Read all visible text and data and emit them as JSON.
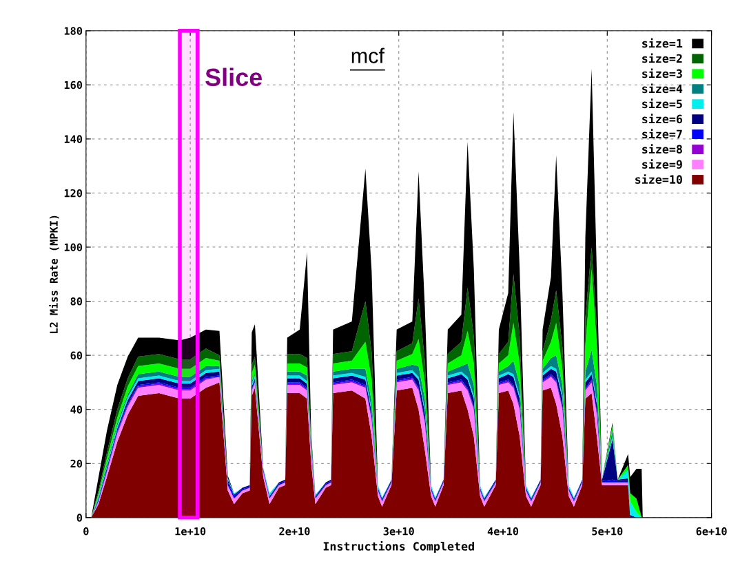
{
  "chart_data": {
    "type": "area",
    "stacked": true,
    "title": "mcf",
    "xlabel": "Instructions Completed",
    "ylabel": "L2 Miss Rate (MPKI)",
    "x": [
      500000000.0,
      1200000000.0,
      2000000000.0,
      3000000000.0,
      4000000000.0,
      5000000000.0,
      7000000000.0,
      9000000000.0,
      10000000000.0,
      11500000000.0,
      12800000000.0,
      13600000000.0,
      14200000000.0,
      15000000000.0,
      15700000000.0,
      15900000000.0,
      16200000000.0,
      17000000000.0,
      17600000000.0,
      18500000000.0,
      19100000000.0,
      19300000000.0,
      20500000000.0,
      21200000000.0,
      21600000000.0,
      22000000000.0,
      23000000000.0,
      23500000000.0,
      23700000000.0,
      25500000000.0,
      26800000000.0,
      27400000000.0,
      28000000000.0,
      28400000000.0,
      29300000000.0,
      29800000000.0,
      31300000000.0,
      31900000000.0,
      32500000000.0,
      33100000000.0,
      33500000000.0,
      34300000000.0,
      34700000000.0,
      36000000000.0,
      36600000000.0,
      37200000000.0,
      37800000000.0,
      38200000000.0,
      39300000000.0,
      39600000000.0,
      40500000000.0,
      41000000000.0,
      41600000000.0,
      42200000000.0,
      42700000000.0,
      43600000000.0,
      43800000000.0,
      44600000000.0,
      45100000000.0,
      45700000000.0,
      46300000000.0,
      46800000000.0,
      47600000000.0,
      47900000000.0,
      48500000000.0,
      49000000000.0,
      49500000000.0,
      50500000000.0,
      51000000000.0,
      52000000000.0,
      52200000000.0,
      52800000000.0,
      53300000000.0,
      53400000000.0
    ],
    "series": [
      {
        "name": "size=10",
        "color": "#800000",
        "values": [
          0,
          5,
          15,
          28,
          38,
          45,
          46,
          44,
          44,
          48,
          50,
          10,
          5,
          9,
          10,
          45,
          48,
          15,
          5,
          11,
          12,
          46,
          46,
          44,
          20,
          5,
          11,
          12,
          46,
          47,
          44,
          30,
          8,
          4,
          12,
          47,
          48,
          40,
          25,
          8,
          4,
          12,
          46,
          47,
          40,
          30,
          8,
          4,
          12,
          46,
          47,
          42,
          30,
          8,
          4,
          12,
          47,
          48,
          42,
          30,
          8,
          4,
          12,
          44,
          46,
          30,
          12,
          12,
          12,
          12,
          0,
          0,
          0,
          0
        ]
      },
      {
        "name": "size=9",
        "color": "#ff80ff",
        "values": [
          0,
          1,
          2,
          3,
          3,
          3,
          3,
          3,
          3,
          3,
          2,
          2,
          2,
          1,
          1,
          2,
          2,
          2,
          2,
          1,
          1,
          3,
          3,
          3,
          3,
          2,
          1,
          1,
          3,
          3,
          4,
          6,
          2,
          2,
          1,
          3,
          3,
          7,
          10,
          2,
          2,
          1,
          3,
          3,
          7,
          10,
          2,
          2,
          1,
          3,
          3,
          6,
          10,
          2,
          2,
          1,
          3,
          4,
          8,
          10,
          2,
          2,
          1,
          3,
          4,
          8,
          1,
          1,
          1,
          1,
          0,
          0,
          0,
          0
        ]
      },
      {
        "name": "size=8",
        "color": "#9400d3",
        "values": [
          0,
          0,
          0,
          0.5,
          0.5,
          0.5,
          0.5,
          0.5,
          0.5,
          0.5,
          0,
          0,
          0,
          0,
          0,
          0,
          0,
          0,
          0,
          0,
          0,
          0.5,
          0.5,
          0.5,
          0.5,
          0,
          0,
          0,
          0.5,
          0.5,
          0.5,
          0.5,
          0,
          0,
          0,
          0.5,
          0.5,
          0.5,
          0.5,
          0,
          0,
          0,
          0.5,
          0.5,
          0.5,
          0.5,
          0,
          0,
          0,
          0.5,
          0.5,
          0.5,
          0.5,
          0,
          0,
          0,
          0.5,
          0.5,
          0.5,
          0.5,
          0,
          0,
          0,
          0.5,
          0.5,
          0.5,
          0,
          0,
          0,
          0,
          0,
          0,
          0,
          0
        ]
      },
      {
        "name": "size=7",
        "color": "#0000ff",
        "values": [
          0,
          0.5,
          0.5,
          0.5,
          0.5,
          0.5,
          0.5,
          0.5,
          0.5,
          0.5,
          0.5,
          1,
          1,
          0.5,
          0.5,
          0.5,
          0.5,
          0.5,
          0.5,
          0.5,
          0.5,
          0.5,
          0.5,
          0.5,
          0.5,
          0.5,
          0.5,
          0.5,
          0.5,
          0.5,
          0.5,
          0.5,
          0.5,
          0.5,
          0.5,
          0.5,
          0.5,
          0.5,
          0.5,
          0.5,
          0.5,
          0.5,
          0.5,
          0.5,
          0.5,
          0.5,
          0.5,
          0.5,
          0.5,
          0.5,
          0.5,
          0.5,
          0.5,
          0.5,
          0.5,
          0.5,
          0.5,
          0.5,
          0.5,
          0.5,
          0.5,
          0.5,
          0.5,
          0.5,
          0.5,
          0.5,
          0.5,
          1,
          0.5,
          0.5,
          0,
          0,
          0,
          0
        ]
      },
      {
        "name": "size=6",
        "color": "#000080",
        "values": [
          0,
          0.5,
          1,
          1,
          1.5,
          1.5,
          1.5,
          1.5,
          1.5,
          1.5,
          1.5,
          1,
          0.5,
          0.5,
          0.5,
          1,
          1,
          0.5,
          0.5,
          0.5,
          0.5,
          1.5,
          1.5,
          1.5,
          1,
          0.5,
          0.5,
          0.5,
          1.5,
          1.5,
          2,
          2,
          0.5,
          0.5,
          0.5,
          1.5,
          1.5,
          3,
          3,
          0.5,
          0.5,
          0.5,
          1.5,
          2,
          3,
          3,
          0.5,
          0.5,
          0.5,
          1.5,
          2,
          3,
          3,
          0.5,
          0.5,
          0.5,
          1.5,
          2,
          3,
          3,
          0.5,
          0.5,
          0.5,
          2,
          2,
          3,
          0.5,
          15,
          0.5,
          1,
          1,
          0,
          0,
          0
        ]
      },
      {
        "name": "size=5",
        "color": "#00eeee",
        "values": [
          0,
          0.5,
          0.5,
          1,
          1,
          1,
          1,
          1,
          1,
          1,
          1,
          0.5,
          0.5,
          0,
          0,
          1,
          1,
          0.5,
          1,
          0,
          0,
          1,
          1,
          1,
          1,
          0.5,
          0,
          0,
          1,
          1,
          1,
          1,
          1,
          0.5,
          0,
          1,
          1,
          1,
          1,
          1,
          0.5,
          0,
          1,
          1,
          1,
          1,
          1,
          0.5,
          0,
          1,
          1,
          1,
          1,
          1,
          0.5,
          0,
          1,
          1,
          1,
          1,
          1,
          0.5,
          0,
          1,
          1,
          1,
          0.5,
          1,
          0,
          3,
          5,
          2,
          0,
          0
        ]
      },
      {
        "name": "size=4",
        "color": "#008080",
        "values": [
          0,
          0.5,
          1,
          1,
          1,
          1.5,
          1.5,
          1.5,
          1.5,
          1.5,
          1,
          0,
          0,
          0,
          0,
          1,
          1,
          0,
          0,
          0,
          0,
          1.5,
          1.5,
          2,
          1,
          0,
          0,
          0,
          1.5,
          1.5,
          3,
          3,
          0,
          0,
          0,
          1.5,
          2,
          4,
          4,
          0,
          0,
          0,
          1.5,
          2,
          5,
          4,
          0,
          0,
          0,
          1.5,
          2,
          5,
          4,
          0,
          0,
          0,
          1.5,
          3,
          5,
          4,
          0,
          0,
          0,
          3,
          8,
          6,
          0,
          2,
          0,
          0,
          0,
          0,
          0,
          0
        ]
      },
      {
        "name": "size=3",
        "color": "#00ff00",
        "values": [
          0,
          1,
          2,
          2,
          3,
          3,
          3,
          3,
          3,
          3,
          2,
          0,
          0,
          0,
          0,
          3,
          3,
          0,
          0,
          0,
          0,
          3,
          3,
          3,
          1,
          0,
          0,
          0,
          3,
          3,
          10,
          8,
          0,
          0,
          0,
          3,
          4,
          10,
          6,
          0,
          0,
          0,
          3,
          4,
          12,
          8,
          0,
          0,
          0,
          3,
          4,
          14,
          8,
          0,
          0,
          0,
          3,
          6,
          12,
          6,
          0,
          0,
          0,
          10,
          30,
          15,
          0,
          2,
          0,
          2,
          3,
          5,
          0,
          0
        ]
      },
      {
        "name": "size=2",
        "color": "#006400",
        "values": [
          0,
          1,
          2,
          3,
          3,
          3.5,
          3.5,
          3.5,
          3.5,
          3.5,
          2,
          0,
          0,
          0,
          0,
          3,
          3,
          0,
          0,
          0,
          0,
          3.5,
          3.5,
          3.5,
          1,
          0,
          0,
          0,
          3.5,
          3.5,
          15,
          10,
          0,
          0,
          0,
          3.5,
          4,
          15,
          8,
          0,
          0,
          0,
          3.5,
          5,
          16,
          10,
          0,
          0,
          0,
          3.5,
          5,
          18,
          10,
          0,
          0,
          0,
          3.5,
          8,
          12,
          8,
          0,
          0,
          0,
          10,
          8,
          6,
          0,
          0,
          0,
          0,
          0,
          0,
          0,
          0
        ]
      },
      {
        "name": "size=1",
        "color": "#000000",
        "values": [
          0,
          5,
          8,
          9,
          8,
          7,
          6,
          7,
          8,
          7,
          9,
          1,
          0,
          0,
          0,
          12,
          12,
          0,
          0,
          0,
          0,
          6,
          9,
          39,
          2,
          0,
          0,
          0,
          9,
          11,
          49,
          30,
          0,
          0,
          0,
          8,
          8,
          47,
          20,
          0,
          0,
          0,
          9,
          10,
          54,
          25,
          0,
          0,
          0,
          9,
          18,
          60,
          25,
          0,
          0,
          0,
          8,
          16,
          50,
          20,
          0,
          0,
          0,
          30,
          66,
          20,
          0,
          1,
          0,
          4,
          6,
          11,
          18,
          0
        ]
      }
    ],
    "xlim": [
      0,
      60000000000.0
    ],
    "xticks": [
      0,
      {
        "value": 10000000000.0,
        "label": "1e+10"
      },
      {
        "value": 20000000000.0,
        "label": "2e+10"
      },
      {
        "value": 30000000000.0,
        "label": "3e+10"
      },
      {
        "value": 40000000000.0,
        "label": "4e+10"
      },
      {
        "value": 50000000000.0,
        "label": "5e+10"
      },
      {
        "value": 60000000000.0,
        "label": "6e+10"
      }
    ],
    "ylim": [
      0,
      180
    ],
    "yticks": [
      0,
      20,
      40,
      60,
      80,
      100,
      120,
      140,
      160,
      180
    ],
    "grid": true,
    "legend": "top right",
    "bands": [
      {
        "axis": "x",
        "from": 9000000000.0,
        "to": 10700000000.0,
        "label": "Slice",
        "color": "#ff00ff"
      }
    ]
  }
}
